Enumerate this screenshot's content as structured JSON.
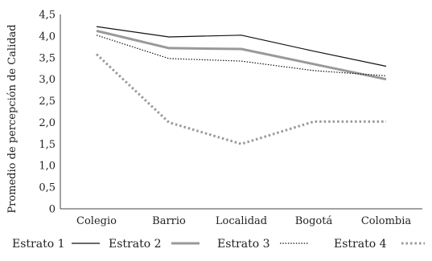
{
  "chart_data": {
    "type": "line",
    "categories": [
      "Colegio",
      "Barrio",
      "Localidad",
      "Bogotá",
      "Colombia"
    ],
    "ylabel": "Promedio de percepción de Calidad",
    "xlabel": "",
    "ylim": [
      0,
      4.5
    ],
    "yticks": [
      "0",
      "0,5",
      "1,0",
      "1,5",
      "2,0",
      "2,5",
      "3,0",
      "3,5",
      "4,0",
      "4,5"
    ],
    "grid": false,
    "legend_position": "bottom",
    "series": [
      {
        "name": "Estrato 1",
        "values": [
          4.22,
          3.98,
          4.02,
          3.65,
          3.3
        ],
        "color": "#111111",
        "style": "solid-thin"
      },
      {
        "name": "Estrato 2",
        "values": [
          4.12,
          3.72,
          3.7,
          3.35,
          3.0
        ],
        "color": "#999999",
        "style": "solid-thick"
      },
      {
        "name": "Estrato 3",
        "values": [
          4.02,
          3.48,
          3.42,
          3.2,
          3.08
        ],
        "color": "#111111",
        "style": "dotted-thin"
      },
      {
        "name": "Estrato 4",
        "values": [
          3.58,
          2.0,
          1.5,
          2.02,
          2.02
        ],
        "color": "#999999",
        "style": "dotted-thick"
      }
    ]
  }
}
